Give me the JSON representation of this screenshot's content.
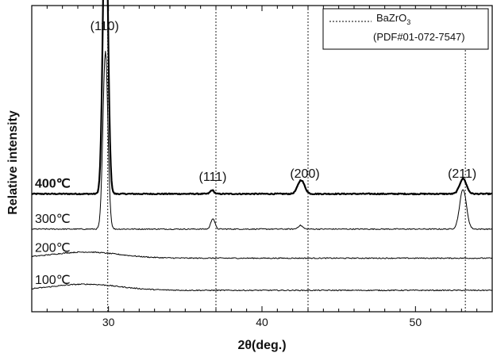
{
  "chart_data": {
    "type": "line",
    "xlabel": "2θ(deg.)",
    "ylabel": "Relative intensity",
    "xlim": [
      25,
      55
    ],
    "x_ticks": [
      30,
      40,
      50
    ],
    "grid": false,
    "legend": {
      "placement": "top-right",
      "entries": [
        {
          "line1": "BaZrO",
          "sub": "3",
          "line2": "(PDF#01-072-7547)",
          "style": "dotted"
        }
      ]
    },
    "reference_lines": [
      29.95,
      37.0,
      43.0,
      53.25
    ],
    "peak_labels": [
      {
        "text": "(110)",
        "x": 29.95
      },
      {
        "text": "(111)",
        "x": 37.0
      },
      {
        "text": "(200)",
        "x": 43.0
      },
      {
        "text": "(211)",
        "x": 53.25
      }
    ],
    "series": [
      {
        "name": "400℃",
        "bold": true,
        "baseline": 0.385,
        "stroke": 2.2,
        "hump": 0,
        "peaks": [
          {
            "x": 29.8,
            "h": 1.0,
            "w": 0.16
          },
          {
            "x": 36.75,
            "h": 0.012,
            "w": 0.12
          },
          {
            "x": 42.55,
            "h": 0.045,
            "w": 0.22
          },
          {
            "x": 53.1,
            "h": 0.05,
            "w": 0.22
          }
        ]
      },
      {
        "name": "300℃",
        "bold": false,
        "baseline": 0.27,
        "stroke": 1.0,
        "hump": 0,
        "peaks": [
          {
            "x": 29.8,
            "h": 0.58,
            "w": 0.16
          },
          {
            "x": 36.8,
            "h": 0.035,
            "w": 0.13
          },
          {
            "x": 42.5,
            "h": 0.012,
            "w": 0.15
          },
          {
            "x": 53.1,
            "h": 0.13,
            "w": 0.22
          }
        ]
      },
      {
        "name": "200℃",
        "bold": false,
        "baseline": 0.175,
        "stroke": 1.0,
        "hump": 0.02,
        "peaks": []
      },
      {
        "name": "100℃",
        "bold": false,
        "baseline": 0.07,
        "stroke": 1.0,
        "hump": 0.02,
        "peaks": []
      }
    ]
  }
}
